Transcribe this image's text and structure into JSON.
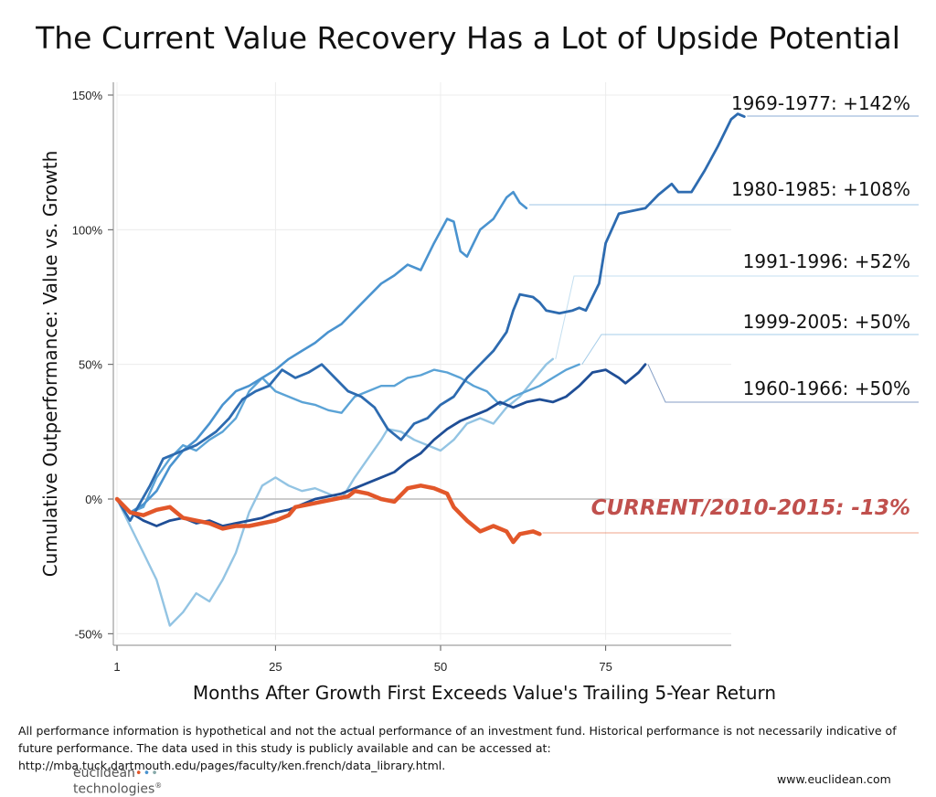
{
  "chart_data": {
    "type": "line",
    "title": "The Current Value Recovery Has a Lot of Upside Potential",
    "xlabel": "Months After Growth First Exceeds Value's Trailing 5-Year Return",
    "ylabel": "Cumulative Outperformance: Value vs. Growth",
    "xlim": [
      1,
      96
    ],
    "ylim": [
      -55,
      150
    ],
    "x_ticks": [
      {
        "value": 1,
        "label": "1"
      },
      {
        "value": 25,
        "label": "25"
      },
      {
        "value": 50,
        "label": "50"
      },
      {
        "value": 75,
        "label": "75"
      }
    ],
    "y_ticks": [
      {
        "value": 150,
        "label": "150%"
      },
      {
        "value": 100,
        "label": "100%"
      },
      {
        "value": 50,
        "label": "50%"
      },
      {
        "value": 0,
        "label": "0%"
      },
      {
        "value": -50,
        "label": "-50%"
      }
    ],
    "grid": true,
    "series": [
      {
        "name": "1969-1977: +142%",
        "color": "#2d6bb0",
        "width": 2.8,
        "points": [
          [
            1,
            0
          ],
          [
            3,
            -8
          ],
          [
            6,
            5
          ],
          [
            8,
            15
          ],
          [
            10,
            17
          ],
          [
            13,
            20
          ],
          [
            16,
            25
          ],
          [
            18,
            30
          ],
          [
            20,
            37
          ],
          [
            22,
            40
          ],
          [
            24,
            42
          ],
          [
            26,
            48
          ],
          [
            28,
            45
          ],
          [
            30,
            47
          ],
          [
            32,
            50
          ],
          [
            34,
            45
          ],
          [
            36,
            40
          ],
          [
            38,
            38
          ],
          [
            40,
            34
          ],
          [
            42,
            26
          ],
          [
            44,
            22
          ],
          [
            46,
            28
          ],
          [
            48,
            30
          ],
          [
            50,
            35
          ],
          [
            52,
            38
          ],
          [
            54,
            45
          ],
          [
            56,
            50
          ],
          [
            58,
            55
          ],
          [
            60,
            62
          ],
          [
            61,
            70
          ],
          [
            62,
            76
          ],
          [
            64,
            75
          ],
          [
            65,
            73
          ],
          [
            66,
            70
          ],
          [
            68,
            69
          ],
          [
            70,
            70
          ],
          [
            71,
            71
          ],
          [
            72,
            70
          ],
          [
            74,
            80
          ],
          [
            75,
            95
          ],
          [
            77,
            106
          ],
          [
            79,
            107
          ],
          [
            81,
            108
          ],
          [
            83,
            113
          ],
          [
            85,
            117
          ],
          [
            86,
            114
          ],
          [
            88,
            114
          ],
          [
            90,
            122
          ],
          [
            92,
            131
          ],
          [
            94,
            141
          ],
          [
            95,
            143
          ],
          [
            96,
            142
          ]
        ]
      },
      {
        "name": "1980-1985: +108%",
        "color": "#4a93cf",
        "width": 2.6,
        "points": [
          [
            1,
            0
          ],
          [
            3,
            -5
          ],
          [
            5,
            -2
          ],
          [
            7,
            3
          ],
          [
            9,
            12
          ],
          [
            11,
            18
          ],
          [
            13,
            22
          ],
          [
            15,
            28
          ],
          [
            17,
            35
          ],
          [
            19,
            40
          ],
          [
            21,
            42
          ],
          [
            23,
            45
          ],
          [
            25,
            48
          ],
          [
            27,
            52
          ],
          [
            29,
            55
          ],
          [
            31,
            58
          ],
          [
            33,
            62
          ],
          [
            35,
            65
          ],
          [
            37,
            70
          ],
          [
            39,
            75
          ],
          [
            41,
            80
          ],
          [
            43,
            83
          ],
          [
            45,
            87
          ],
          [
            47,
            85
          ],
          [
            49,
            95
          ],
          [
            51,
            104
          ],
          [
            52,
            103
          ],
          [
            53,
            92
          ],
          [
            54,
            90
          ],
          [
            56,
            100
          ],
          [
            58,
            104
          ],
          [
            60,
            112
          ],
          [
            61,
            114
          ],
          [
            62,
            110
          ],
          [
            63,
            108
          ]
        ]
      },
      {
        "name": "1991-1996: +52%",
        "color": "#93c4e3",
        "width": 2.4,
        "points": [
          [
            1,
            0
          ],
          [
            3,
            -10
          ],
          [
            5,
            -20
          ],
          [
            7,
            -30
          ],
          [
            9,
            -47
          ],
          [
            11,
            -42
          ],
          [
            13,
            -35
          ],
          [
            15,
            -38
          ],
          [
            17,
            -30
          ],
          [
            19,
            -20
          ],
          [
            21,
            -5
          ],
          [
            23,
            5
          ],
          [
            25,
            8
          ],
          [
            27,
            5
          ],
          [
            29,
            3
          ],
          [
            31,
            4
          ],
          [
            33,
            2
          ],
          [
            35,
            0
          ],
          [
            37,
            8
          ],
          [
            39,
            15
          ],
          [
            41,
            22
          ],
          [
            42,
            26
          ],
          [
            44,
            25
          ],
          [
            46,
            22
          ],
          [
            48,
            20
          ],
          [
            50,
            18
          ],
          [
            52,
            22
          ],
          [
            54,
            28
          ],
          [
            56,
            30
          ],
          [
            58,
            28
          ],
          [
            60,
            34
          ],
          [
            62,
            38
          ],
          [
            64,
            44
          ],
          [
            66,
            50
          ],
          [
            67,
            52
          ]
        ]
      },
      {
        "name": "1999-2005: +50%",
        "color": "#5ba3d6",
        "width": 2.4,
        "points": [
          [
            1,
            0
          ],
          [
            3,
            -5
          ],
          [
            5,
            -3
          ],
          [
            7,
            8
          ],
          [
            9,
            15
          ],
          [
            11,
            20
          ],
          [
            13,
            18
          ],
          [
            15,
            22
          ],
          [
            17,
            25
          ],
          [
            19,
            30
          ],
          [
            21,
            40
          ],
          [
            23,
            45
          ],
          [
            25,
            40
          ],
          [
            27,
            38
          ],
          [
            29,
            36
          ],
          [
            31,
            35
          ],
          [
            33,
            33
          ],
          [
            35,
            32
          ],
          [
            37,
            38
          ],
          [
            39,
            40
          ],
          [
            41,
            42
          ],
          [
            43,
            42
          ],
          [
            45,
            45
          ],
          [
            47,
            46
          ],
          [
            49,
            48
          ],
          [
            51,
            47
          ],
          [
            53,
            45
          ],
          [
            55,
            42
          ],
          [
            57,
            40
          ],
          [
            59,
            35
          ],
          [
            61,
            38
          ],
          [
            63,
            40
          ],
          [
            65,
            42
          ],
          [
            67,
            45
          ],
          [
            69,
            48
          ],
          [
            71,
            50
          ]
        ]
      },
      {
        "name": "1960-1966: +50%",
        "color": "#1f4e96",
        "width": 2.8,
        "points": [
          [
            1,
            0
          ],
          [
            3,
            -5
          ],
          [
            5,
            -8
          ],
          [
            7,
            -10
          ],
          [
            9,
            -8
          ],
          [
            11,
            -7
          ],
          [
            13,
            -9
          ],
          [
            15,
            -8
          ],
          [
            17,
            -10
          ],
          [
            19,
            -9
          ],
          [
            21,
            -8
          ],
          [
            23,
            -7
          ],
          [
            25,
            -5
          ],
          [
            27,
            -4
          ],
          [
            29,
            -2
          ],
          [
            31,
            0
          ],
          [
            33,
            1
          ],
          [
            35,
            2
          ],
          [
            37,
            4
          ],
          [
            39,
            6
          ],
          [
            41,
            8
          ],
          [
            43,
            10
          ],
          [
            45,
            14
          ],
          [
            47,
            17
          ],
          [
            49,
            22
          ],
          [
            51,
            26
          ],
          [
            53,
            29
          ],
          [
            55,
            31
          ],
          [
            57,
            33
          ],
          [
            59,
            36
          ],
          [
            61,
            34
          ],
          [
            63,
            36
          ],
          [
            65,
            37
          ],
          [
            67,
            36
          ],
          [
            69,
            38
          ],
          [
            71,
            42
          ],
          [
            73,
            47
          ],
          [
            75,
            48
          ],
          [
            77,
            45
          ],
          [
            78,
            43
          ],
          [
            80,
            47
          ],
          [
            81,
            50
          ]
        ]
      },
      {
        "name": "CURRENT/2010-2015: -13%",
        "color": "#e2572a",
        "width": 4.5,
        "label_color": "#c0504d",
        "label_italic": true,
        "points": [
          [
            1,
            0
          ],
          [
            3,
            -5
          ],
          [
            5,
            -6
          ],
          [
            7,
            -4
          ],
          [
            9,
            -3
          ],
          [
            11,
            -7
          ],
          [
            13,
            -8
          ],
          [
            15,
            -9
          ],
          [
            17,
            -11
          ],
          [
            19,
            -10
          ],
          [
            21,
            -10
          ],
          [
            23,
            -9
          ],
          [
            25,
            -8
          ],
          [
            27,
            -6
          ],
          [
            28,
            -3
          ],
          [
            30,
            -2
          ],
          [
            32,
            -1
          ],
          [
            34,
            0
          ],
          [
            36,
            1
          ],
          [
            37,
            3
          ],
          [
            39,
            2
          ],
          [
            41,
            0
          ],
          [
            43,
            -1
          ],
          [
            45,
            4
          ],
          [
            47,
            5
          ],
          [
            49,
            4
          ],
          [
            51,
            2
          ],
          [
            52,
            -3
          ],
          [
            54,
            -8
          ],
          [
            56,
            -12
          ],
          [
            58,
            -10
          ],
          [
            60,
            -12
          ],
          [
            61,
            -16
          ],
          [
            62,
            -13
          ],
          [
            64,
            -12
          ],
          [
            65,
            -13
          ]
        ]
      }
    ],
    "end_labels": [
      {
        "text": "1969-1977: +142%",
        "series": 0
      },
      {
        "text": "1980-1985: +108%",
        "series": 1
      },
      {
        "text": "1991-1996: +52%",
        "series": 2
      },
      {
        "text": "1999-2005: +50%",
        "series": 3
      },
      {
        "text": "1960-1966: +50%",
        "series": 4
      },
      {
        "text": "CURRENT/2010-2015: -13%",
        "series": 5
      }
    ]
  },
  "footnote": "All performance information is hypothetical and not the actual performance of an investment fund. Historical performance is not necessarily indicative of future performance. The data used in this study is publicly available and can be accessed at: http://mba.tuck.dartmouth.edu/pages/faculty/ken.french/data_library.html.",
  "logo": {
    "line1": "euclidean",
    "line2": "technologies",
    "mark": "®"
  },
  "website": "www.euclidean.com"
}
